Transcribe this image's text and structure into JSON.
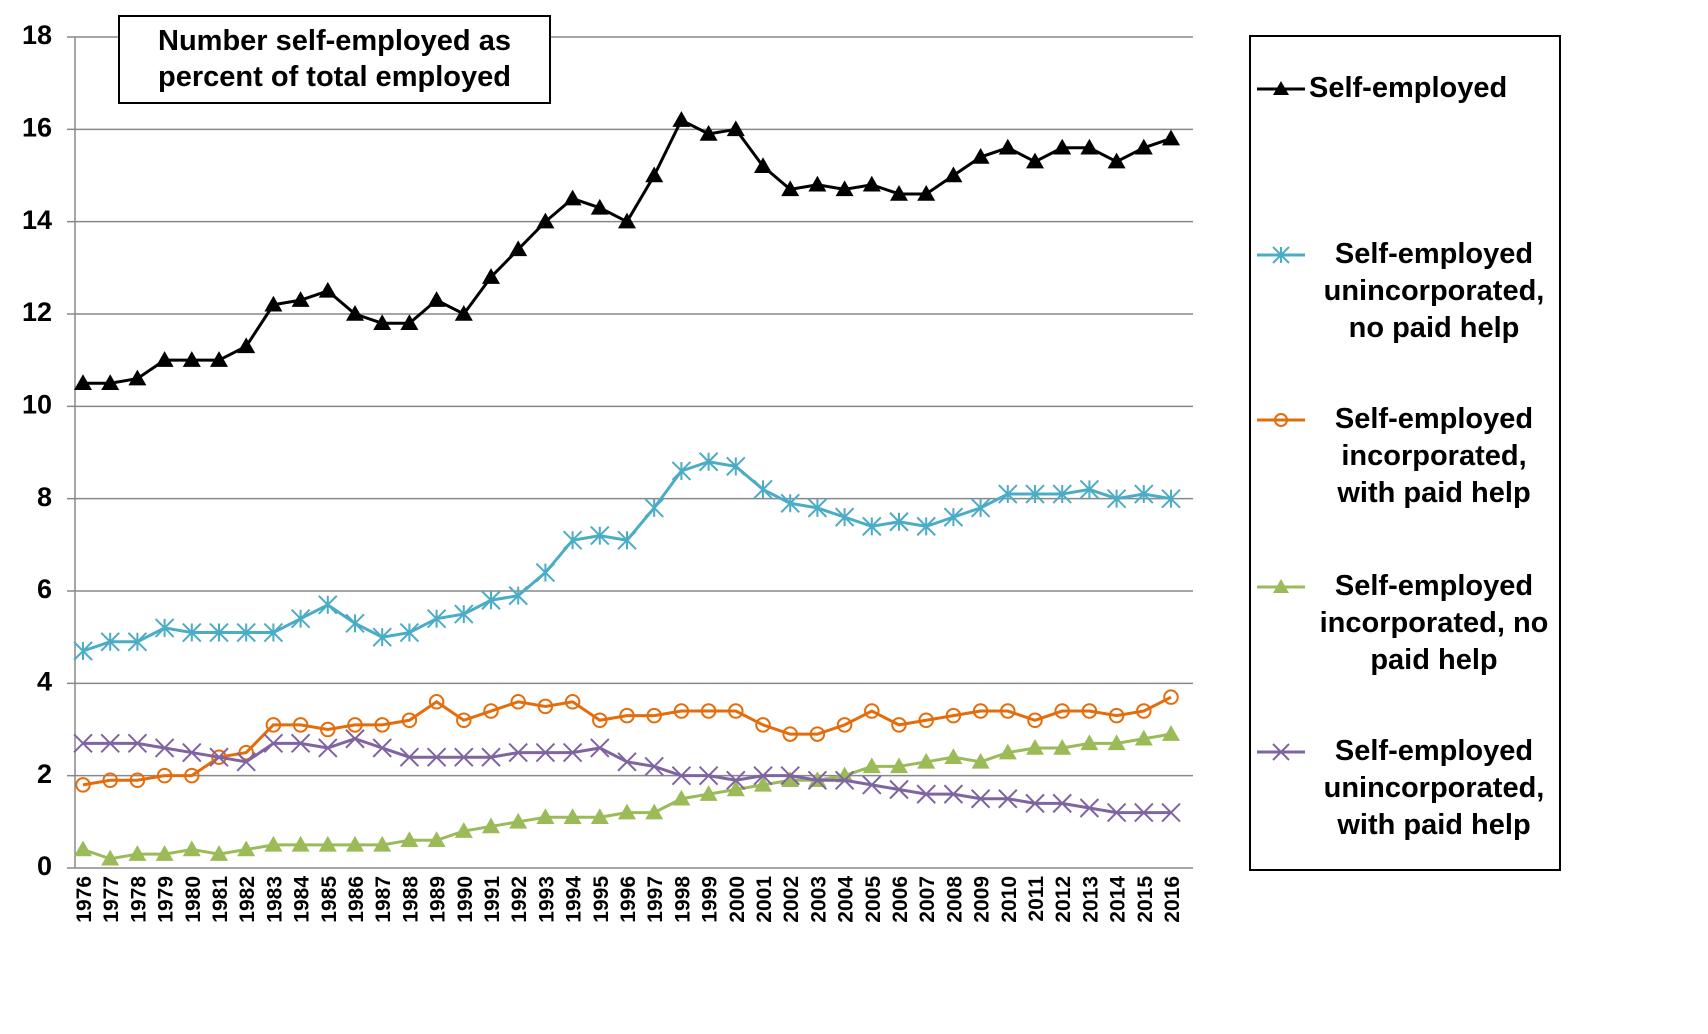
{
  "chart_data": {
    "type": "line",
    "title": "Number self-employed as percent of total employed",
    "categories": [
      "1976",
      "1977",
      "1978",
      "1979",
      "1980",
      "1981",
      "1982",
      "1983",
      "1984",
      "1985",
      "1986",
      "1987",
      "1988",
      "1989",
      "1990",
      "1991",
      "1992",
      "1993",
      "1994",
      "1995",
      "1996",
      "1997",
      "1998",
      "1999",
      "2000",
      "2001",
      "2002",
      "2003",
      "2004",
      "2005",
      "2006",
      "2007",
      "2008",
      "2009",
      "2010",
      "2011",
      "2012",
      "2013",
      "2014",
      "2015",
      "2016"
    ],
    "ylim": [
      0,
      18
    ],
    "yticks": [
      0,
      2,
      4,
      6,
      8,
      10,
      12,
      14,
      16,
      18
    ],
    "grid": true,
    "legend": "right",
    "series": [
      {
        "name": "Self-employed",
        "color": "#000000",
        "marker": "triangle",
        "values": [
          10.5,
          10.5,
          10.6,
          11.0,
          11.0,
          11.0,
          11.3,
          12.2,
          12.3,
          12.5,
          12.0,
          11.8,
          11.8,
          12.3,
          12.0,
          12.8,
          13.4,
          14.0,
          14.5,
          14.3,
          14.0,
          15.0,
          16.2,
          15.9,
          16.0,
          15.2,
          14.7,
          14.8,
          14.7,
          14.8,
          14.6,
          14.6,
          15.0,
          15.4,
          15.6,
          15.3,
          15.6,
          15.6,
          15.3,
          15.6,
          15.8
        ]
      },
      {
        "name": "Self-employed unincorporated, no paid help",
        "color": "#4bacc6",
        "marker": "asterisk",
        "values": [
          4.7,
          4.9,
          4.9,
          5.2,
          5.1,
          5.1,
          5.1,
          5.1,
          5.4,
          5.7,
          5.3,
          5.0,
          5.1,
          5.4,
          5.5,
          5.8,
          5.9,
          6.4,
          7.1,
          7.2,
          7.1,
          7.8,
          8.6,
          8.8,
          8.7,
          8.2,
          7.9,
          7.8,
          7.6,
          7.4,
          7.5,
          7.4,
          7.6,
          7.8,
          8.1,
          8.1,
          8.1,
          8.2,
          8.0,
          8.1,
          8.0
        ]
      },
      {
        "name": "Self-employed incorporated, with paid help",
        "color": "#e46c0a",
        "marker": "circle",
        "values": [
          1.8,
          1.9,
          1.9,
          2.0,
          2.0,
          2.4,
          2.5,
          3.1,
          3.1,
          3.0,
          3.1,
          3.1,
          3.2,
          3.6,
          3.2,
          3.4,
          3.6,
          3.5,
          3.6,
          3.2,
          3.3,
          3.3,
          3.4,
          3.4,
          3.4,
          3.1,
          2.9,
          2.9,
          3.1,
          3.4,
          3.1,
          3.2,
          3.3,
          3.4,
          3.4,
          3.2,
          3.4,
          3.4,
          3.3,
          3.4,
          3.7
        ]
      },
      {
        "name": "Self-employed incorporated, no paid help",
        "color": "#9bbb59",
        "marker": "triangle",
        "values": [
          0.4,
          0.2,
          0.3,
          0.3,
          0.4,
          0.3,
          0.4,
          0.5,
          0.5,
          0.5,
          0.5,
          0.5,
          0.6,
          0.6,
          0.8,
          0.9,
          1.0,
          1.1,
          1.1,
          1.1,
          1.2,
          1.2,
          1.5,
          1.6,
          1.7,
          1.8,
          1.9,
          1.9,
          2.0,
          2.2,
          2.2,
          2.3,
          2.4,
          2.3,
          2.5,
          2.6,
          2.6,
          2.7,
          2.7,
          2.8,
          2.9
        ]
      },
      {
        "name": "Self-employed unincorporated, with paid help",
        "color": "#8064a2",
        "marker": "x",
        "values": [
          2.7,
          2.7,
          2.7,
          2.6,
          2.5,
          2.4,
          2.3,
          2.7,
          2.7,
          2.6,
          2.8,
          2.6,
          2.4,
          2.4,
          2.4,
          2.4,
          2.5,
          2.5,
          2.5,
          2.6,
          2.3,
          2.2,
          2.0,
          2.0,
          1.9,
          2.0,
          2.0,
          1.9,
          1.9,
          1.8,
          1.7,
          1.6,
          1.6,
          1.5,
          1.5,
          1.4,
          1.4,
          1.3,
          1.2,
          1.2,
          1.2
        ]
      }
    ]
  }
}
